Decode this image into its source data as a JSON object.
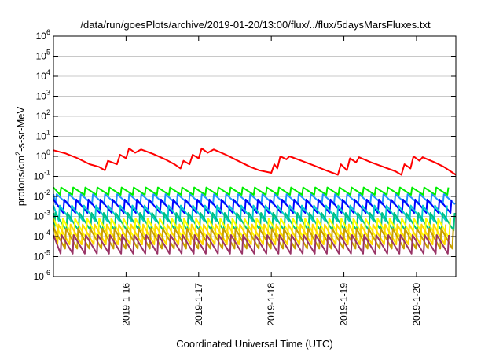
{
  "chart_data": {
    "type": "line",
    "title": "/data/run/goesPlots/archive/2019-01-20/13:00/flux/../flux/5daysMarsFluxes.txt",
    "xlabel": "Coordinated Universal Time (UTC)",
    "ylabel_parts": {
      "pre": "protons/cm",
      "sup": "2",
      "post": "-s-sr-MeV"
    },
    "x_range": [
      "2019-01-15T00:00",
      "2019-01-20T13:00"
    ],
    "x_ticks": [
      "2019-1-16",
      "2019-1-17",
      "2019-1-18",
      "2019-1-19",
      "2019-1-20"
    ],
    "y_scale": "log",
    "ylim": [
      1e-06,
      1000000.0
    ],
    "y_ticks": [
      {
        "base": "10",
        "exp": "-6"
      },
      {
        "base": "10",
        "exp": "-5"
      },
      {
        "base": "10",
        "exp": "-4"
      },
      {
        "base": "10",
        "exp": "-3"
      },
      {
        "base": "10",
        "exp": "-2"
      },
      {
        "base": "10",
        "exp": "-1"
      },
      {
        "base": "10",
        "exp": "0"
      },
      {
        "base": "10",
        "exp": "1"
      },
      {
        "base": "10",
        "exp": "2"
      },
      {
        "base": "10",
        "exp": "3"
      },
      {
        "base": "10",
        "exp": "4"
      },
      {
        "base": "10",
        "exp": "5"
      },
      {
        "base": "10",
        "exp": "6"
      }
    ],
    "grid": "horizontal",
    "legend": "none",
    "series": [
      {
        "color": "#ff0000",
        "points": [
          [
            "2019-01-15T00:00",
            2.0
          ],
          [
            "2019-01-15T04:00",
            1.4
          ],
          [
            "2019-01-15T08:00",
            0.8
          ],
          [
            "2019-01-15T12:00",
            0.4
          ],
          [
            "2019-01-15T15:00",
            0.3
          ],
          [
            "2019-01-15T17:00",
            0.2
          ],
          [
            "2019-01-15T18:00",
            0.6
          ],
          [
            "2019-01-15T21:00",
            0.4
          ],
          [
            "2019-01-15T22:00",
            1.2
          ],
          [
            "2019-01-16T00:00",
            0.8
          ],
          [
            "2019-01-16T01:00",
            2.5
          ],
          [
            "2019-01-16T03:00",
            1.5
          ],
          [
            "2019-01-16T05:00",
            2.2
          ],
          [
            "2019-01-16T09:00",
            1.3
          ],
          [
            "2019-01-16T13:00",
            0.7
          ],
          [
            "2019-01-16T16:00",
            0.4
          ],
          [
            "2019-01-16T18:00",
            0.25
          ],
          [
            "2019-01-16T19:00",
            0.6
          ],
          [
            "2019-01-16T21:00",
            0.4
          ],
          [
            "2019-01-16T22:00",
            1.2
          ],
          [
            "2019-01-17T00:00",
            0.8
          ],
          [
            "2019-01-17T01:00",
            2.5
          ],
          [
            "2019-01-17T03:00",
            1.5
          ],
          [
            "2019-01-17T05:00",
            2.2
          ],
          [
            "2019-01-17T09:00",
            1.2
          ],
          [
            "2019-01-17T13:00",
            0.6
          ],
          [
            "2019-01-17T17:00",
            0.3
          ],
          [
            "2019-01-17T20:00",
            0.2
          ],
          [
            "2019-01-18T00:00",
            0.15
          ],
          [
            "2019-01-18T01:00",
            0.4
          ],
          [
            "2019-01-18T02:00",
            0.25
          ],
          [
            "2019-01-18T03:00",
            1.0
          ],
          [
            "2019-01-18T05:00",
            0.7
          ],
          [
            "2019-01-18T06:00",
            1.0
          ],
          [
            "2019-01-18T10:00",
            0.6
          ],
          [
            "2019-01-18T14:00",
            0.35
          ],
          [
            "2019-01-18T18:00",
            0.2
          ],
          [
            "2019-01-18T22:00",
            0.12
          ],
          [
            "2019-01-18T23:00",
            0.4
          ],
          [
            "2019-01-19T01:00",
            0.2
          ],
          [
            "2019-01-19T02:00",
            0.8
          ],
          [
            "2019-01-19T04:00",
            0.5
          ],
          [
            "2019-01-19T05:00",
            0.9
          ],
          [
            "2019-01-19T09:00",
            0.5
          ],
          [
            "2019-01-19T13:00",
            0.3
          ],
          [
            "2019-01-19T17:00",
            0.18
          ],
          [
            "2019-01-19T19:00",
            0.12
          ],
          [
            "2019-01-19T20:00",
            0.4
          ],
          [
            "2019-01-19T22:00",
            0.25
          ],
          [
            "2019-01-19T23:00",
            1.0
          ],
          [
            "2019-01-20T01:00",
            0.6
          ],
          [
            "2019-01-20T02:00",
            0.9
          ],
          [
            "2019-01-20T06:00",
            0.5
          ],
          [
            "2019-01-20T09:00",
            0.3
          ],
          [
            "2019-01-20T12:00",
            0.15
          ],
          [
            "2019-01-20T13:00",
            0.12
          ]
        ]
      },
      {
        "color": "#00ee00",
        "sawtooth": {
          "top": 0.028,
          "bottom": 0.012,
          "period_hours": 4
        }
      },
      {
        "color": "#1e90ff",
        "sawtooth": {
          "top": 0.013,
          "bottom": 0.004,
          "period_hours": 4
        }
      },
      {
        "color": "#0000ff",
        "sawtooth": {
          "top": 0.007,
          "bottom": 0.0015,
          "period_hours": 4
        }
      },
      {
        "color": "#00cccc",
        "sawtooth": {
          "top": 0.0035,
          "bottom": 0.0006,
          "period_hours": 4
        }
      },
      {
        "color": "#00c080",
        "sawtooth": {
          "top": 0.0015,
          "bottom": 0.0002,
          "period_hours": 4
        }
      },
      {
        "color": "#ffff00",
        "sawtooth": {
          "top": 0.0008,
          "bottom": 8e-05,
          "period_hours": 4
        }
      },
      {
        "color": "#ffd700",
        "sawtooth": {
          "top": 0.0004,
          "bottom": 4e-05,
          "period_hours": 4
        }
      },
      {
        "color": "#c8a000",
        "sawtooth": {
          "top": 0.00025,
          "bottom": 2.5e-05,
          "period_hours": 4
        }
      },
      {
        "color": "#993366",
        "sawtooth": {
          "top": 0.00012,
          "bottom": 1.4e-05,
          "period_hours": 4
        }
      }
    ]
  }
}
